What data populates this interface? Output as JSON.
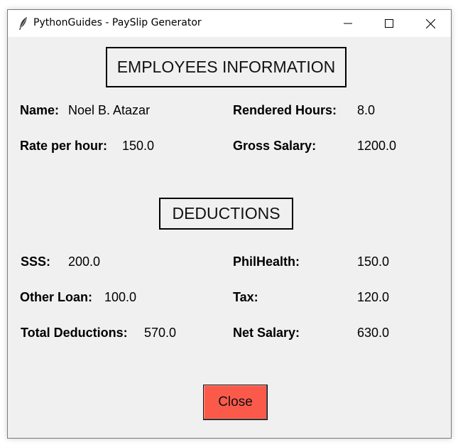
{
  "window": {
    "title": "PythonGuides - PaySlip Generator",
    "icon": "feather-icon",
    "controls": {
      "minimize_icon": "minimize-icon",
      "maximize_icon": "maximize-icon",
      "close_icon": "close-icon"
    }
  },
  "employee_info": {
    "heading": "EMPLOYEES INFORMATION",
    "name_label": "Name:",
    "name_value": "Noel B. Atazar",
    "rendered_hours_label": "Rendered Hours:",
    "rendered_hours_value": "8.0",
    "rate_label": "Rate per hour:",
    "rate_value": "150.0",
    "gross_label": "Gross Salary:",
    "gross_value": "1200.0"
  },
  "deductions": {
    "heading": "DEDUCTIONS",
    "sss_label": "SSS:",
    "sss_value": "200.0",
    "philhealth_label": "PhilHealth:",
    "philhealth_value": "150.0",
    "other_loan_label": "Other Loan:",
    "other_loan_value": "100.0",
    "tax_label": "Tax:",
    "tax_value": "120.0",
    "total_label": "Total Deductions:",
    "total_value": "570.0",
    "net_label": "Net Salary:",
    "net_value": "630.0"
  },
  "actions": {
    "close_label": "Close",
    "close_color": "#fb5a4b"
  }
}
